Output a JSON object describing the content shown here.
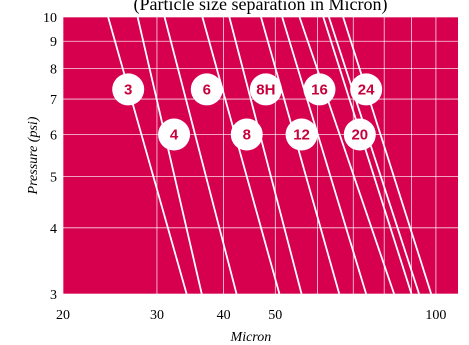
{
  "chart_data": {
    "type": "line",
    "title": "(Particle size separation in Micron)",
    "xlabel": "Micron",
    "ylabel": "Pressure (psi)",
    "x_scale": "log",
    "y_scale": "log",
    "xlim": [
      20,
      110
    ],
    "ylim": [
      3,
      10
    ],
    "x_ticks": [
      20,
      30,
      40,
      50,
      100
    ],
    "x_gridlines": [
      20,
      30,
      40,
      50,
      60,
      70,
      80,
      90,
      100
    ],
    "y_ticks": [
      3,
      4,
      5,
      6,
      7,
      8,
      9,
      10
    ],
    "grid": true,
    "colors": {
      "plot_background": "#d6004f",
      "line": "#ffffff",
      "grid": "#ffffff",
      "badge_text": "#c8003c"
    },
    "series": [
      {
        "name": "3",
        "x": [
          24.3,
          34.1
        ],
        "y": [
          10,
          3
        ],
        "label_at": [
          26.5,
          7.3
        ]
      },
      {
        "name": "4",
        "x": [
          27.6,
          36.4
        ],
        "y": [
          10,
          3
        ],
        "label_at": [
          32.3,
          6.0
        ]
      },
      {
        "name": "6",
        "x": [
          31.0,
          42.3
        ],
        "y": [
          10,
          3
        ],
        "label_at": [
          37.2,
          7.3
        ]
      },
      {
        "name": "8",
        "x": [
          36.5,
          50.9
        ],
        "y": [
          10,
          3
        ],
        "label_at": [
          44.2,
          6.0
        ]
      },
      {
        "name": "8H",
        "x": [
          41.0,
          56.0
        ],
        "y": [
          10,
          3
        ],
        "label_at": [
          48.0,
          7.3
        ]
      },
      {
        "name": "12",
        "x": [
          47.0,
          65.9
        ],
        "y": [
          10,
          3
        ],
        "label_at": [
          56.0,
          6.0
        ]
      },
      {
        "name": "16",
        "x": [
          51.5,
          74.0
        ],
        "y": [
          10,
          3
        ],
        "label_at": [
          60.5,
          7.3
        ]
      },
      {
        "name": "20",
        "x": [
          55.5,
          83.5
        ],
        "y": [
          10,
          3
        ],
        "label_at": [
          72.0,
          6.0
        ]
      },
      {
        "name": "24",
        "x": [
          63.0,
          93.0
        ],
        "y": [
          10,
          3
        ],
        "label_at": [
          74.0,
          7.3
        ]
      },
      {
        "name": "",
        "x": [
          61.5,
          90.0
        ],
        "y": [
          10,
          3
        ]
      },
      {
        "name": "",
        "x": [
          67.0,
          98.0
        ],
        "y": [
          10,
          3
        ]
      }
    ]
  }
}
